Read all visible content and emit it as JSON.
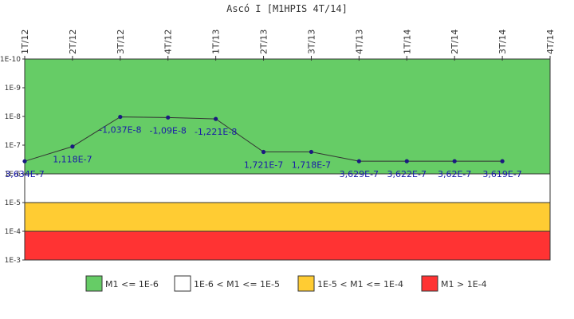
{
  "chart_data": {
    "type": "line",
    "title": "Ascó I [M1HPIS 4T/14]",
    "xlabel": "",
    "ylabel": "",
    "y_scale": "log",
    "y_axis_inverted": true,
    "ylim": [
      0.001,
      1e-10
    ],
    "y_ticks": [
      "1E-10",
      "1E-9",
      "1E-8",
      "1E-7",
      "1E-6",
      "1E-5",
      "1E-4",
      "1E-3"
    ],
    "categories": [
      "1T/12",
      "2T/12",
      "3T/12",
      "4T/12",
      "1T/13",
      "2T/13",
      "3T/13",
      "4T/13",
      "1T/14",
      "2T/14",
      "3T/14",
      "4T/14"
    ],
    "series": [
      {
        "name": "",
        "color": "#1a1a80",
        "values": [
          3.634e-07,
          1.118e-07,
          -1.037e-08,
          -1.09e-08,
          -1.221e-08,
          1.721e-07,
          1.718e-07,
          3.629e-07,
          3.622e-07,
          3.62e-07,
          3.619e-07,
          null
        ],
        "labels": [
          "3,634E-7",
          "1,118E-7",
          "-1,037E-8",
          "-1,09E-8",
          "-1,221E-8",
          "1,721E-7",
          "1,718E-7",
          "3,629E-7",
          "3,622E-7",
          "3,62E-7",
          "3,619E-7",
          ""
        ]
      }
    ],
    "bands": [
      {
        "from": 1e-10,
        "to": 1e-06,
        "color": "#66cc66",
        "label": "M1 <= 1E-6"
      },
      {
        "from": 1e-06,
        "to": 1e-05,
        "color": "#ffffff",
        "label": "1E-6 < M1 <= 1E-5"
      },
      {
        "from": 1e-05,
        "to": 0.0001,
        "color": "#ffcc33",
        "label": "1E-5 < M1 <= 1E-4"
      },
      {
        "from": 0.0001,
        "to": 0.001,
        "color": "#ff3333",
        "label": "M1 > 1E-4"
      }
    ],
    "grid": false,
    "legend_position": "bottom"
  }
}
